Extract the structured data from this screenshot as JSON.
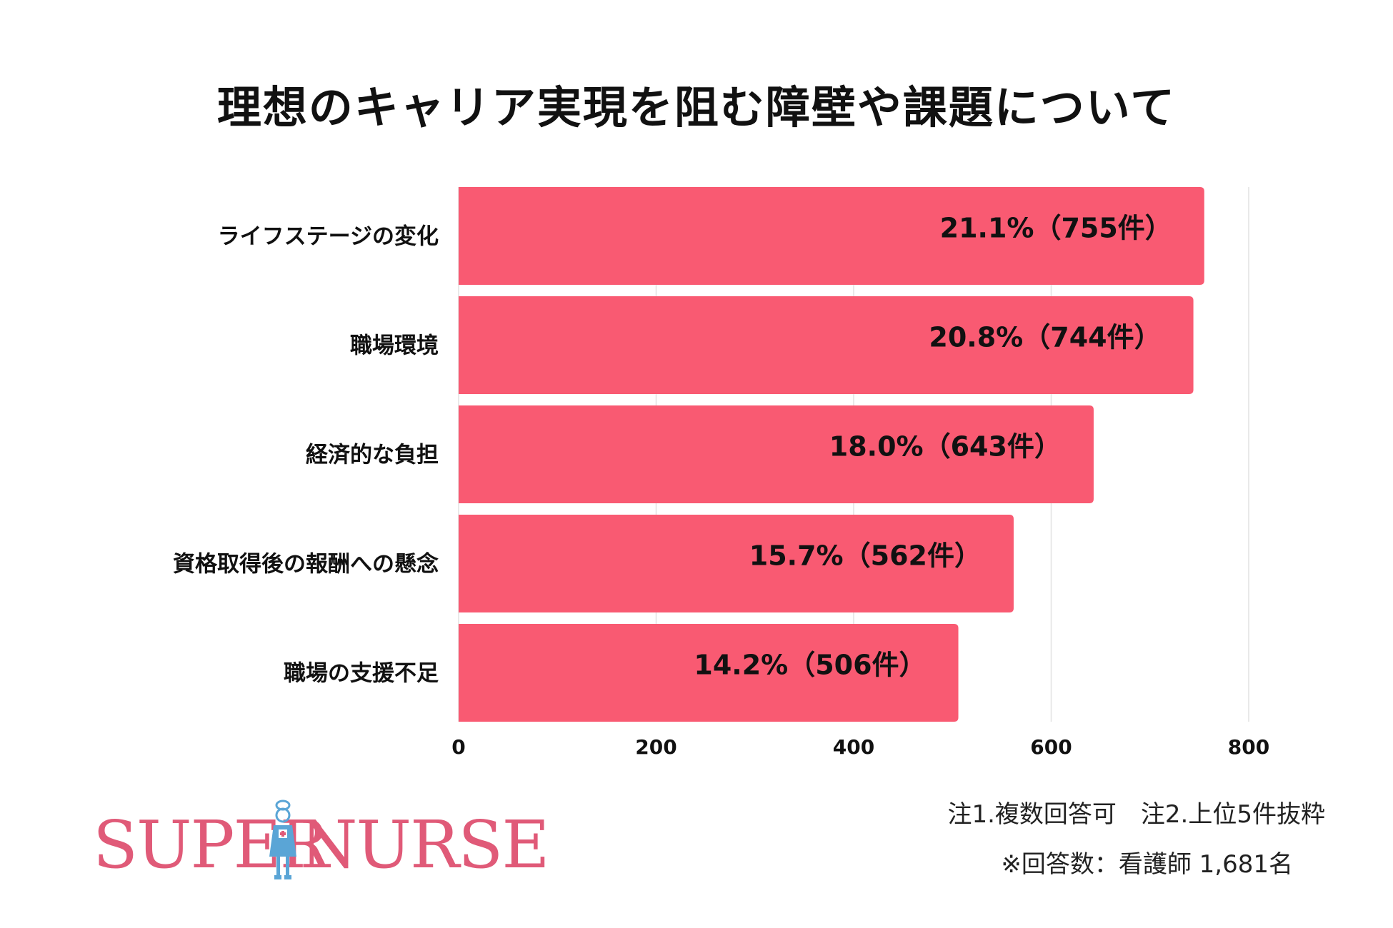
{
  "chart_data": {
    "type": "bar",
    "orientation": "horizontal",
    "title": "理想のキャリア実現を阻む障壁や課題について",
    "categories": [
      "ライフステージの変化",
      "職場環境",
      "経済的な負担",
      "資格取得後の報酬への懸念",
      "職場の支援不足"
    ],
    "values": [
      755,
      744,
      643,
      562,
      506
    ],
    "data_labels": [
      "21.1%（755件）",
      "20.8%（744件）",
      "18.0%（643件）",
      "15.7%（562件）",
      "14.2%（506件）"
    ],
    "xlim": [
      0,
      800
    ],
    "xticks": [
      0,
      200,
      400,
      600,
      800
    ],
    "xlabel": "",
    "ylabel": "",
    "grid": true,
    "bar_color": "#f95a72"
  },
  "notes": {
    "line1": "注1.複数回答可　注2.上位5件抜粋",
    "line2": "※回答数：看護師 1,681名"
  },
  "logo": {
    "left": "SUPER",
    "right": "NURSE",
    "color": "#e05a78",
    "icon": "nurse-figure-icon"
  }
}
